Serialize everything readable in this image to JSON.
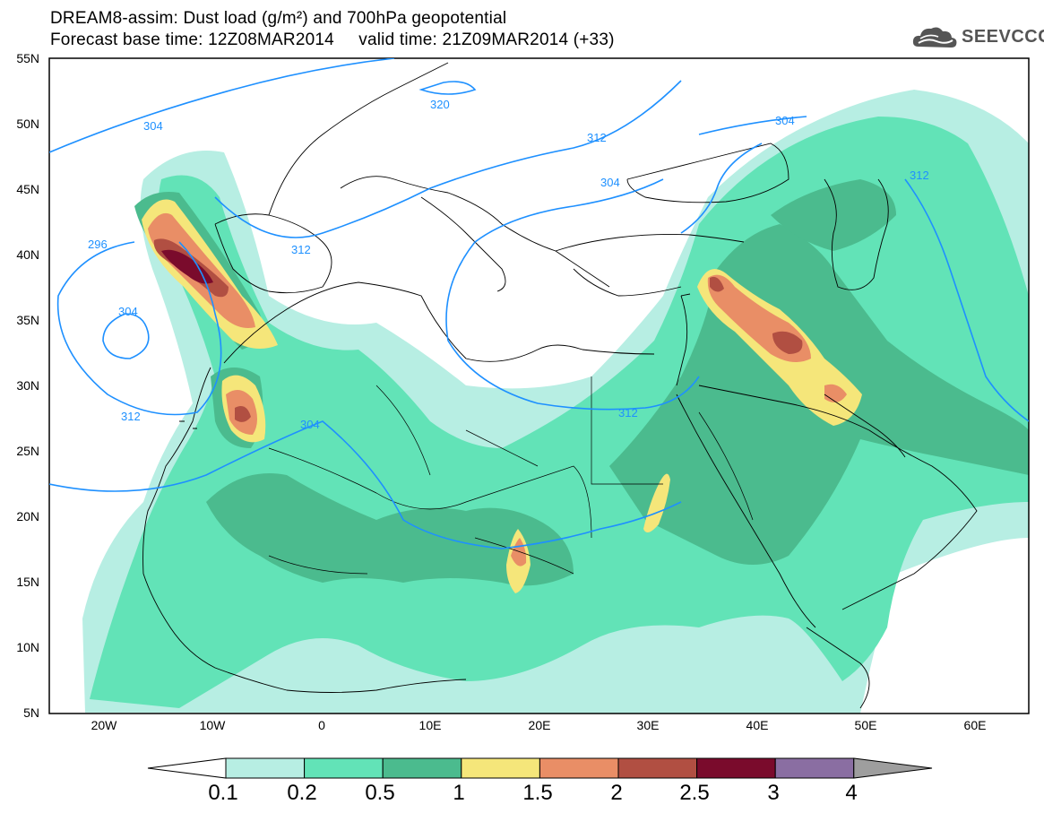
{
  "header": {
    "title_line1": "DREAM8-assim: Dust load (g/m²) and 700hPa geopotential",
    "title_line2": "Forecast base time: 12Z08MAR2014     valid time: 21Z09MAR2014 (+33)"
  },
  "logo": {
    "text": "SEEVCCC",
    "icon": "cloud-icon"
  },
  "map": {
    "lon_range": [
      -25,
      65
    ],
    "lat_range": [
      5,
      55
    ],
    "lat_labels": [
      "55N",
      "50N",
      "45N",
      "40N",
      "35N",
      "30N",
      "25N",
      "20N",
      "15N",
      "10N",
      "5N"
    ],
    "lon_labels": [
      "20W",
      "10W",
      "0",
      "10E",
      "20E",
      "30E",
      "40E",
      "50E",
      "60E"
    ],
    "contour_labels": [
      "304",
      "320",
      "312",
      "304",
      "312",
      "304",
      "312",
      "296",
      "304",
      "312",
      "304",
      "312"
    ]
  },
  "colorbar": {
    "labels": [
      "0.1",
      "0.2",
      "0.5",
      "1",
      "1.5",
      "2",
      "2.5",
      "3",
      "4"
    ],
    "colors": [
      "#b7eee3",
      "#62e3b7",
      "#4bbb8e",
      "#f5e67a",
      "#e98e66",
      "#b14f42",
      "#7a0b2c",
      "#8a6ea2",
      "#9e9e9e"
    ]
  },
  "colors": {
    "contour": "#1e90ff",
    "coast": "#000000"
  }
}
